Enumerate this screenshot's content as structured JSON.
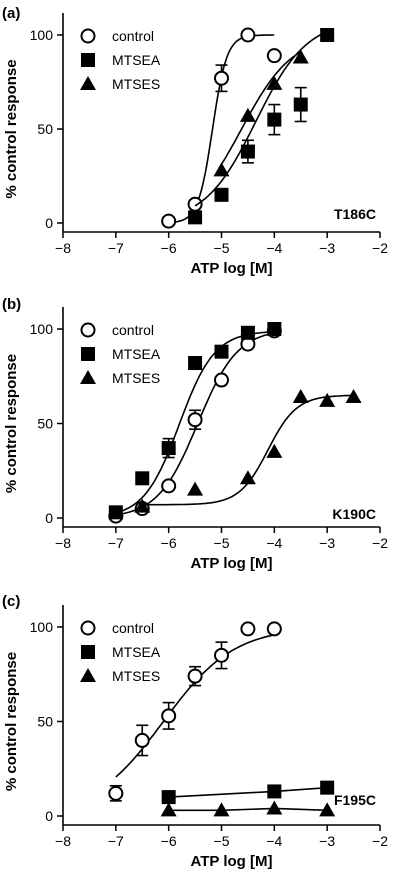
{
  "chart_data": [
    {
      "type": "scatter",
      "panel_label": "(a)",
      "mutant": "T186C",
      "xlabel": "ATP log [M]",
      "ylabel": "% control response",
      "xlim": [
        -8,
        -2
      ],
      "ylim": [
        0,
        100
      ],
      "xticks": [
        -8,
        -7,
        -6,
        -5,
        -4,
        -3,
        -2
      ],
      "yticks": [
        0,
        50,
        100
      ],
      "xtick_labels": [
        "−8",
        "−7",
        "−6",
        "−5",
        "−4",
        "−3",
        "−2"
      ],
      "ytick_labels": [
        "0",
        "50",
        "100"
      ],
      "grid": false,
      "legend_position": "top-left",
      "series": [
        {
          "name": "control",
          "marker": "open-circle",
          "x": [
            -6,
            -5.5,
            -5,
            -4.5,
            -4
          ],
          "y": [
            1,
            10,
            77,
            100,
            89
          ],
          "err": [
            0,
            0,
            7,
            0,
            0
          ],
          "fit": {
            "bottom": 0,
            "top": 100,
            "logEC50": -5.17,
            "hill": 3.2
          }
        },
        {
          "name": "MTSEA",
          "marker": "filled-square",
          "x": [
            -5.5,
            -5,
            -4.5,
            -4,
            -3.5,
            -3
          ],
          "y": [
            3,
            15,
            38,
            55,
            63,
            100
          ],
          "err": [
            0,
            0,
            6,
            8,
            9,
            0
          ],
          "fit": {
            "bottom": 0,
            "top": 108,
            "logEC50": -4.35,
            "hill": 0.9
          }
        },
        {
          "name": "MTSES",
          "marker": "filled-triangle",
          "x": [
            -5,
            -4.5,
            -4,
            -3.5
          ],
          "y": [
            28,
            57,
            74,
            88
          ],
          "err": [
            0,
            0,
            0,
            0
          ],
          "fit": {
            "bottom": 0,
            "top": 100,
            "logEC50": -4.62,
            "hill": 0.9
          }
        }
      ]
    },
    {
      "type": "scatter",
      "panel_label": "(b)",
      "mutant": "K190C",
      "xlabel": "ATP log [M]",
      "ylabel": "% control response",
      "xlim": [
        -8,
        -2
      ],
      "ylim": [
        0,
        100
      ],
      "xticks": [
        -8,
        -7,
        -6,
        -5,
        -4,
        -3,
        -2
      ],
      "yticks": [
        0,
        50,
        100
      ],
      "xtick_labels": [
        "−8",
        "−7",
        "−6",
        "−5",
        "−4",
        "−3",
        "−2"
      ],
      "ytick_labels": [
        "0",
        "50",
        "100"
      ],
      "grid": false,
      "legend_position": "top-left",
      "series": [
        {
          "name": "control",
          "marker": "open-circle",
          "x": [
            -7,
            -6.5,
            -6,
            -5.5,
            -5,
            -4.5,
            -4
          ],
          "y": [
            1,
            5,
            17,
            52,
            73,
            92,
            99
          ],
          "err": [
            0,
            0,
            0,
            5,
            0,
            0,
            0
          ],
          "fit": {
            "bottom": 0,
            "top": 100,
            "logEC50": -5.45,
            "hill": 1.15
          }
        },
        {
          "name": "MTSEA",
          "marker": "filled-square",
          "x": [
            -7,
            -6.5,
            -6,
            -5.5,
            -5,
            -4.5,
            -4
          ],
          "y": [
            3,
            21,
            37,
            82,
            88,
            98,
            100
          ],
          "err": [
            0,
            0,
            5,
            0,
            0,
            0,
            0
          ],
          "fit": {
            "bottom": 0,
            "top": 99,
            "logEC50": -5.8,
            "hill": 1.3
          }
        },
        {
          "name": "MTSES",
          "marker": "filled-triangle",
          "x": [
            -6.5,
            -5.5,
            -4.5,
            -4,
            -3.5,
            -3,
            -2.5
          ],
          "y": [
            6,
            15,
            21,
            35,
            64,
            62,
            64
          ],
          "err": [
            0,
            0,
            0,
            0,
            0,
            0,
            0
          ],
          "fit": {
            "bottom": 7,
            "top": 65,
            "logEC50": -4.12,
            "hill": 1.6,
            "x_start": -6.5,
            "x_end": -2.5
          }
        }
      ]
    },
    {
      "type": "scatter",
      "panel_label": "(c)",
      "mutant": "F195C",
      "xlabel": "ATP log [M]",
      "ylabel": "% control response",
      "xlim": [
        -8,
        -2
      ],
      "ylim": [
        0,
        100
      ],
      "xticks": [
        -8,
        -7,
        -6,
        -5,
        -4,
        -3,
        -2
      ],
      "yticks": [
        0,
        50,
        100
      ],
      "xtick_labels": [
        "−8",
        "−7",
        "−6",
        "−5",
        "−4",
        "−3",
        "−2"
      ],
      "ytick_labels": [
        "0",
        "50",
        "100"
      ],
      "grid": false,
      "legend_position": "top-left",
      "series": [
        {
          "name": "control",
          "marker": "open-circle",
          "x": [
            -7,
            -6.5,
            -6,
            -5.5,
            -5,
            -4.5,
            -4
          ],
          "y": [
            12,
            40,
            53,
            74,
            85,
            99,
            99
          ],
          "err": [
            4,
            8,
            7,
            5,
            7,
            0,
            0
          ],
          "fit": {
            "bottom": 0,
            "top": 100,
            "logEC50": -6.1,
            "hill": 0.65,
            "x_start": -7,
            "x_end": -4
          }
        },
        {
          "name": "MTSEA",
          "marker": "filled-square",
          "x": [
            -6,
            -4,
            -3
          ],
          "y": [
            10,
            13,
            15
          ],
          "err": [
            0,
            0,
            0
          ],
          "line": true
        },
        {
          "name": "MTSES",
          "marker": "filled-triangle",
          "x": [
            -6,
            -5,
            -4,
            -3
          ],
          "y": [
            3,
            3,
            4,
            3
          ],
          "err": [
            0,
            0,
            0,
            0
          ],
          "line": true
        }
      ]
    }
  ]
}
